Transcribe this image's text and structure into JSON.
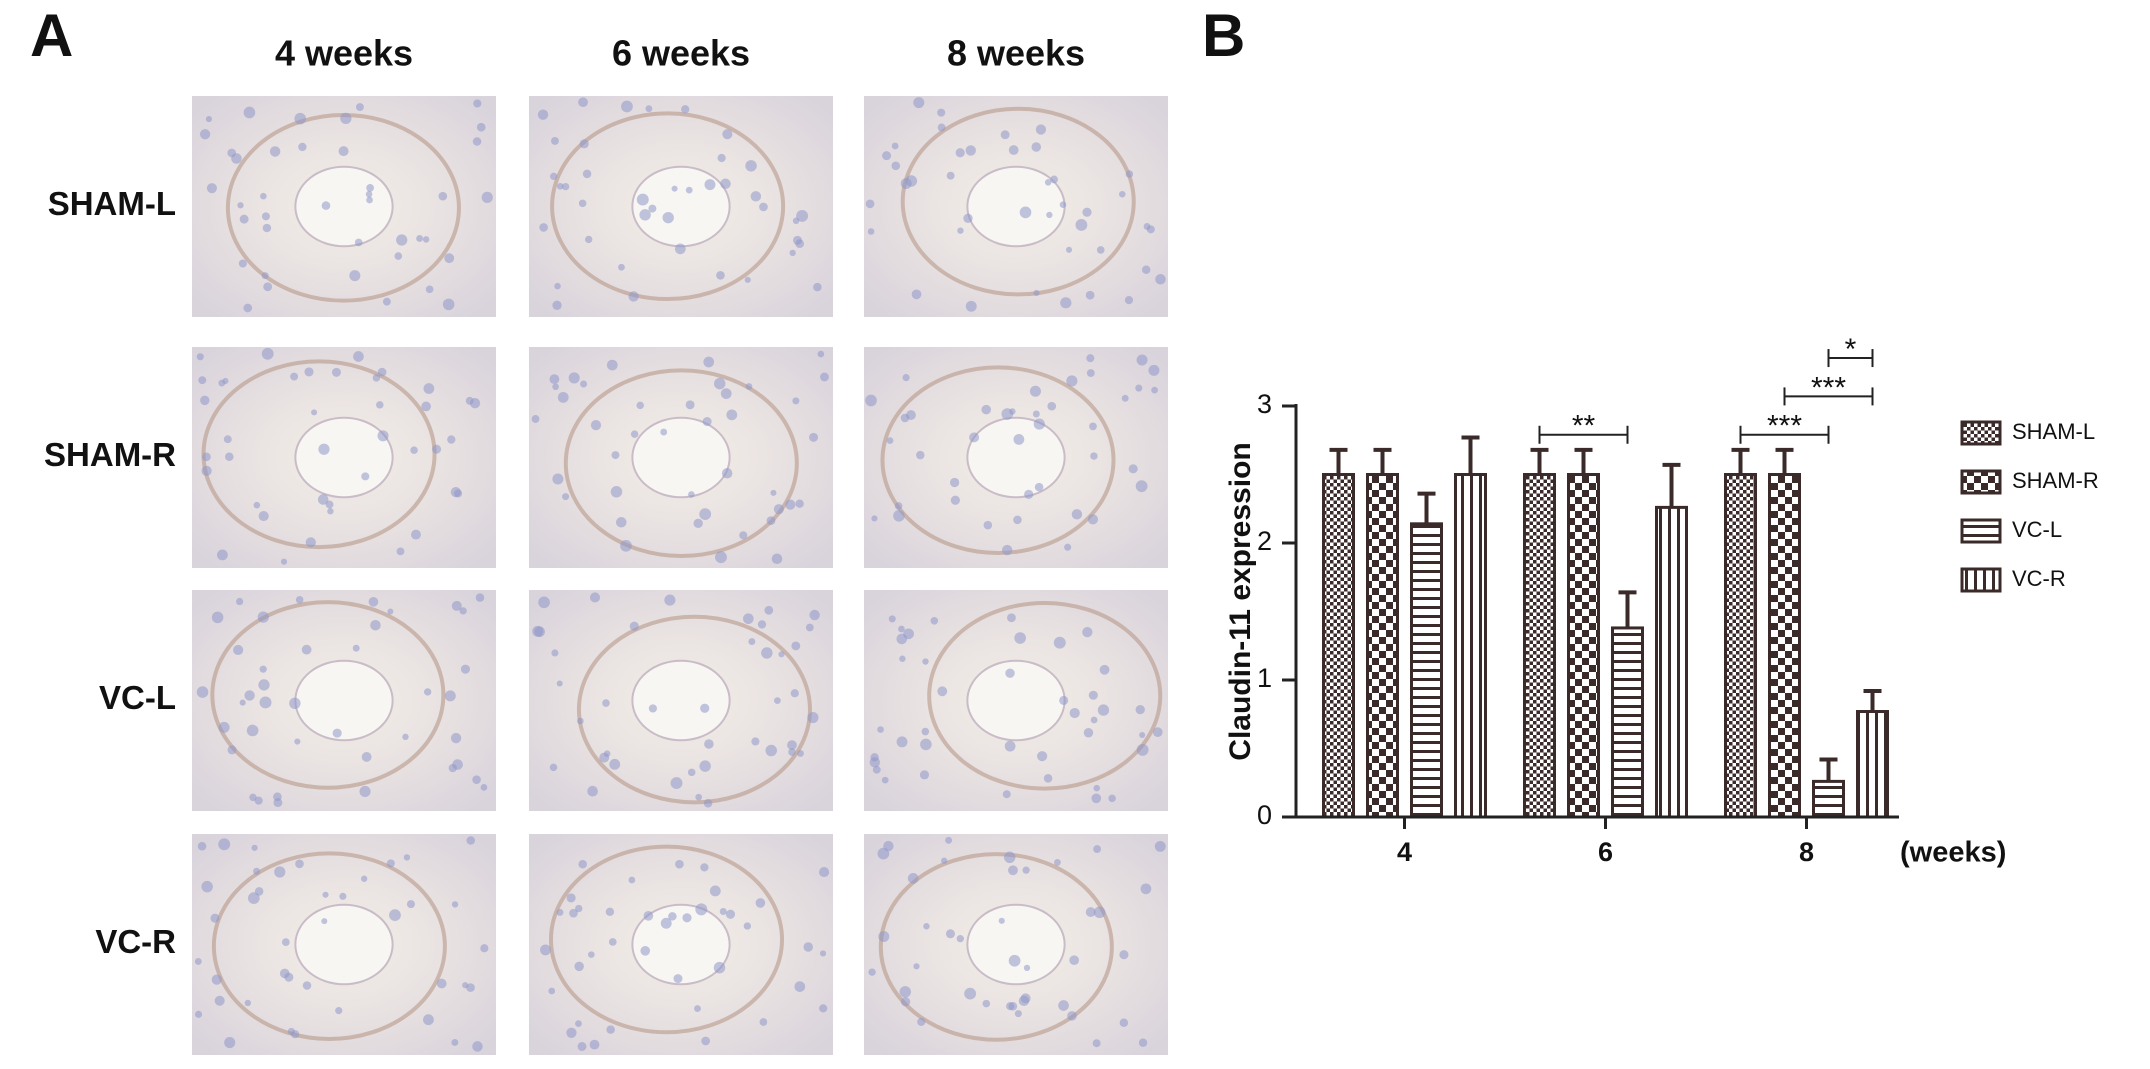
{
  "panels": {
    "a": {
      "label": "A",
      "columns": [
        "4 weeks",
        "6 weeks",
        "8 weeks"
      ],
      "rows": [
        "SHAM-L",
        "SHAM-R",
        "VC-L",
        "VC-R"
      ]
    }
  },
  "chart_data": {
    "type": "bar",
    "panel_label": "B",
    "ylabel": "Claudin-11 expression",
    "xlabel": "(weeks)",
    "categories": [
      "4",
      "6",
      "8"
    ],
    "series": [
      {
        "name": "SHAM-L",
        "color": "#3b2a2a",
        "pattern": "checker-small",
        "values": [
          2.5,
          2.5,
          2.5
        ],
        "errors": [
          0.18,
          0.18,
          0.18
        ]
      },
      {
        "name": "SHAM-R",
        "color": "#3b2a2a",
        "pattern": "checker",
        "values": [
          2.5,
          2.5,
          2.5
        ],
        "errors": [
          0.18,
          0.18,
          0.18
        ]
      },
      {
        "name": "VC-L",
        "color": "#3b2a2a",
        "pattern": "hstripe",
        "values": [
          2.14,
          1.38,
          0.26
        ],
        "errors": [
          0.22,
          0.26,
          0.16
        ]
      },
      {
        "name": "VC-R",
        "color": "#3b2a2a",
        "pattern": "vstripe",
        "values": [
          2.5,
          2.26,
          0.77
        ],
        "errors": [
          0.27,
          0.31,
          0.15
        ]
      }
    ],
    "ylim": [
      0,
      3
    ],
    "yticks": [
      0,
      1,
      2,
      3
    ],
    "legend": "right",
    "annotations": [
      {
        "label": "**",
        "category": "6",
        "between": [
          "SHAM-L",
          "VC-L"
        ]
      },
      {
        "label": "***",
        "category": "8",
        "between": [
          "SHAM-L",
          "VC-L"
        ]
      },
      {
        "label": "***",
        "category": "8",
        "between": [
          "SHAM-R",
          "VC-R"
        ]
      },
      {
        "label": "*",
        "category": "8",
        "between": [
          "VC-L",
          "VC-R"
        ]
      }
    ]
  }
}
